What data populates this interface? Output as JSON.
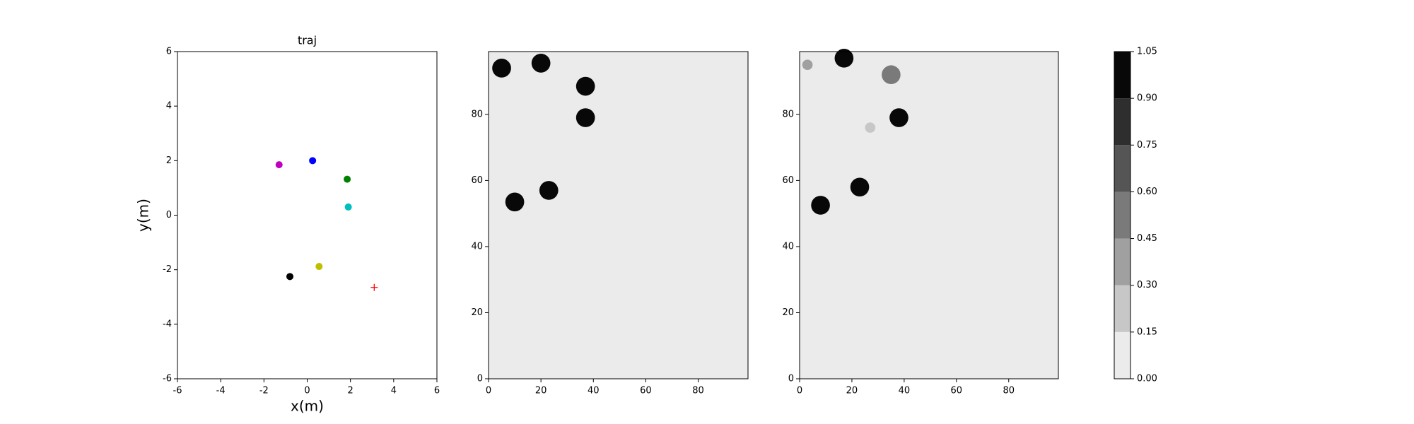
{
  "chart_data": [
    {
      "type": "scatter",
      "title": "traj",
      "x_label": "x(m)",
      "y_label": "y(m)",
      "x": [
        -1.3,
        0.25,
        1.85,
        1.9,
        0.55,
        -0.8,
        3.1
      ],
      "y": [
        1.85,
        2.0,
        1.32,
        0.3,
        -1.88,
        -2.25,
        -2.65
      ],
      "colors": [
        "#bf00bf",
        "#0000ff",
        "#008000",
        "#00bfbf",
        "#bfbf00",
        "#000000",
        "#ff0000"
      ],
      "markers": [
        "o",
        "o",
        "o",
        "o",
        "o",
        "o",
        "+"
      ],
      "xlim": [
        -6,
        6
      ],
      "ylim": [
        -6,
        6
      ],
      "xticks": [
        -6,
        -4,
        -2,
        0,
        2,
        4,
        6
      ],
      "yticks": [
        -6,
        -4,
        -2,
        0,
        2,
        4,
        6
      ]
    },
    {
      "type": "occupancy",
      "x": [
        5,
        20,
        37,
        37,
        10,
        23
      ],
      "y": [
        94,
        95.5,
        88.5,
        79,
        53.5,
        57
      ],
      "values": [
        1,
        1,
        1,
        1,
        1,
        1
      ],
      "xlim": [
        0,
        99
      ],
      "ylim": [
        0,
        99
      ],
      "xticks": [
        0,
        20,
        40,
        60,
        80
      ],
      "yticks": [
        0,
        20,
        40,
        60,
        80
      ]
    },
    {
      "type": "occupancy",
      "x": [
        3,
        17,
        35,
        38,
        27,
        8,
        23
      ],
      "y": [
        95,
        97,
        92,
        79,
        76,
        52.5,
        58
      ],
      "values": [
        0.35,
        1,
        0.6,
        1,
        0.25,
        1,
        1
      ],
      "xlim": [
        0,
        99
      ],
      "ylim": [
        0,
        99
      ],
      "xticks": [
        0,
        20,
        40,
        60,
        80
      ],
      "yticks": [
        0,
        20,
        40,
        60,
        80
      ]
    },
    {
      "type": "colorbar",
      "colors": [
        "#ebebeb",
        "#c7c7c7",
        "#a0a0a0",
        "#7a7a7a",
        "#555555",
        "#2e2e2e",
        "#080808"
      ],
      "ylim": [
        0,
        1.05
      ],
      "yticks": [
        {
          "value": 0,
          "label": "0.00"
        },
        {
          "value": 0.15,
          "label": "0.15"
        },
        {
          "value": 0.3,
          "label": "0.30"
        },
        {
          "value": 0.45,
          "label": "0.45"
        },
        {
          "value": 0.6,
          "label": "0.60"
        },
        {
          "value": 0.75,
          "label": "0.75"
        },
        {
          "value": 0.9,
          "label": "0.90"
        },
        {
          "value": 1.05,
          "label": "1.05"
        }
      ]
    }
  ]
}
